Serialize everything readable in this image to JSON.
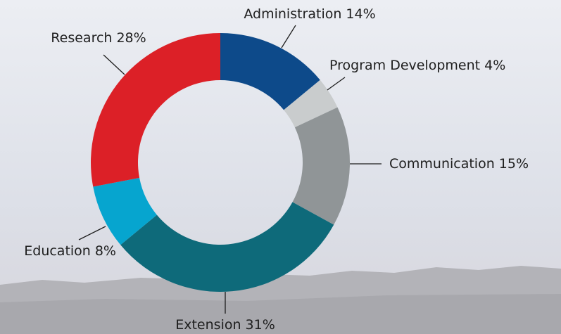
{
  "chart_data": {
    "type": "donut",
    "categories": [
      "Administration",
      "Program Development",
      "Communication",
      "Extension",
      "Education",
      "Research"
    ],
    "values": [
      14,
      4,
      15,
      31,
      8,
      28
    ],
    "value_labels": [
      "14%",
      "4%",
      "15%",
      "31%",
      "8%",
      "28%"
    ],
    "colors": [
      "#0d4a8a",
      "#c9cccd",
      "#909597",
      "#0e6a7a",
      "#06a5cf",
      "#dc2027"
    ]
  }
}
